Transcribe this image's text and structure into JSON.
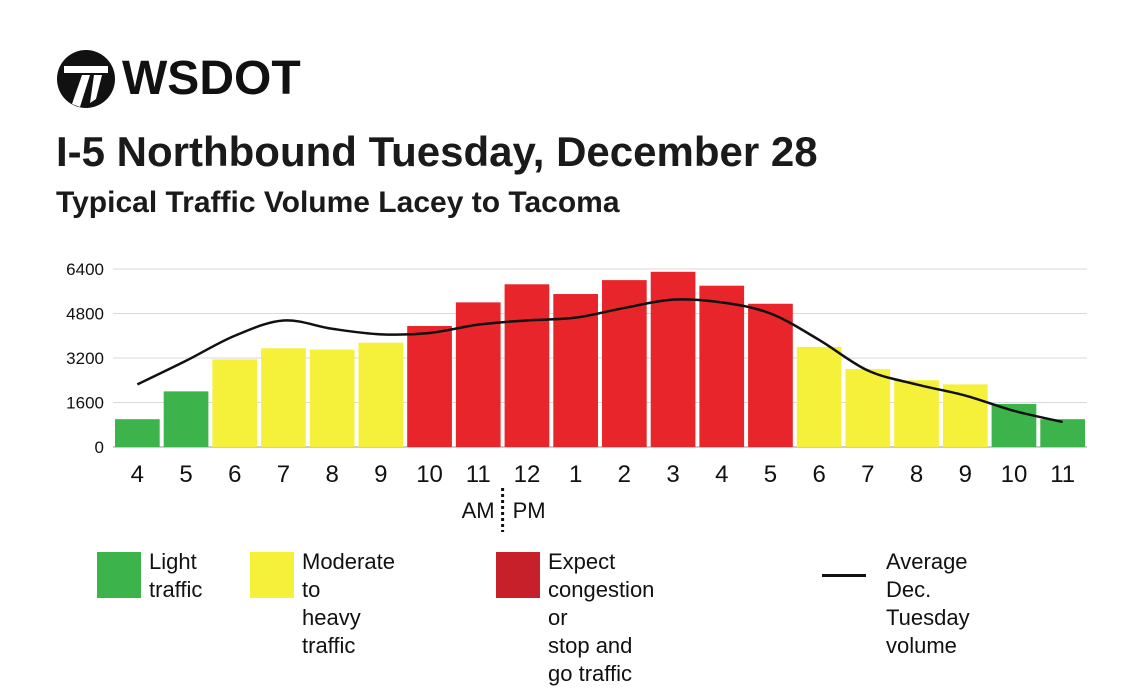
{
  "logo": {
    "text": "WSDOT"
  },
  "header": {
    "title": "I-5 Northbound Tuesday, December 28",
    "subtitle": "Typical Traffic Volume Lacey to Tacoma"
  },
  "colors": {
    "light": "#3cb44b",
    "moderate": "#f5f03a",
    "congestion": "#e8252a",
    "congestion_legend": "#c8202a",
    "line": "#111111",
    "grid": "#d9d9d9"
  },
  "chart_data": {
    "type": "bar",
    "categories": [
      "4",
      "5",
      "6",
      "7",
      "8",
      "9",
      "10",
      "11",
      "12",
      "1",
      "2",
      "3",
      "4",
      "5",
      "6",
      "7",
      "8",
      "9",
      "10",
      "11"
    ],
    "values": [
      1000,
      2000,
      3150,
      3550,
      3500,
      3750,
      4350,
      5200,
      5850,
      5500,
      6000,
      6300,
      5800,
      5150,
      3600,
      2800,
      2400,
      2250,
      1550,
      1000
    ],
    "levels": [
      "light",
      "light",
      "moderate",
      "moderate",
      "moderate",
      "moderate",
      "congestion",
      "congestion",
      "congestion",
      "congestion",
      "congestion",
      "congestion",
      "congestion",
      "congestion",
      "moderate",
      "moderate",
      "moderate",
      "moderate",
      "light",
      "light"
    ],
    "line_values": [
      2250,
      3100,
      4000,
      4550,
      4250,
      4050,
      4100,
      4400,
      4550,
      4650,
      5000,
      5300,
      5200,
      4800,
      3850,
      2750,
      2250,
      1850,
      1300,
      900
    ],
    "yticks": [
      0,
      1600,
      3200,
      4800,
      6400
    ],
    "ylim": [
      0,
      6400
    ],
    "am_label": "AM",
    "pm_label": "PM",
    "grid": true,
    "legend_position": "bottom"
  },
  "legend": {
    "items": [
      {
        "label": "Light\ntraffic",
        "kind": "swatch",
        "level": "light"
      },
      {
        "label": "Moderate to\nheavy traffic",
        "kind": "swatch",
        "level": "moderate"
      },
      {
        "label": "Expect congestion or\nstop and go traffic",
        "kind": "swatch",
        "level": "congestion_legend"
      },
      {
        "label": "Average Dec.\nTuesday volume",
        "kind": "line",
        "level": "line"
      }
    ]
  }
}
